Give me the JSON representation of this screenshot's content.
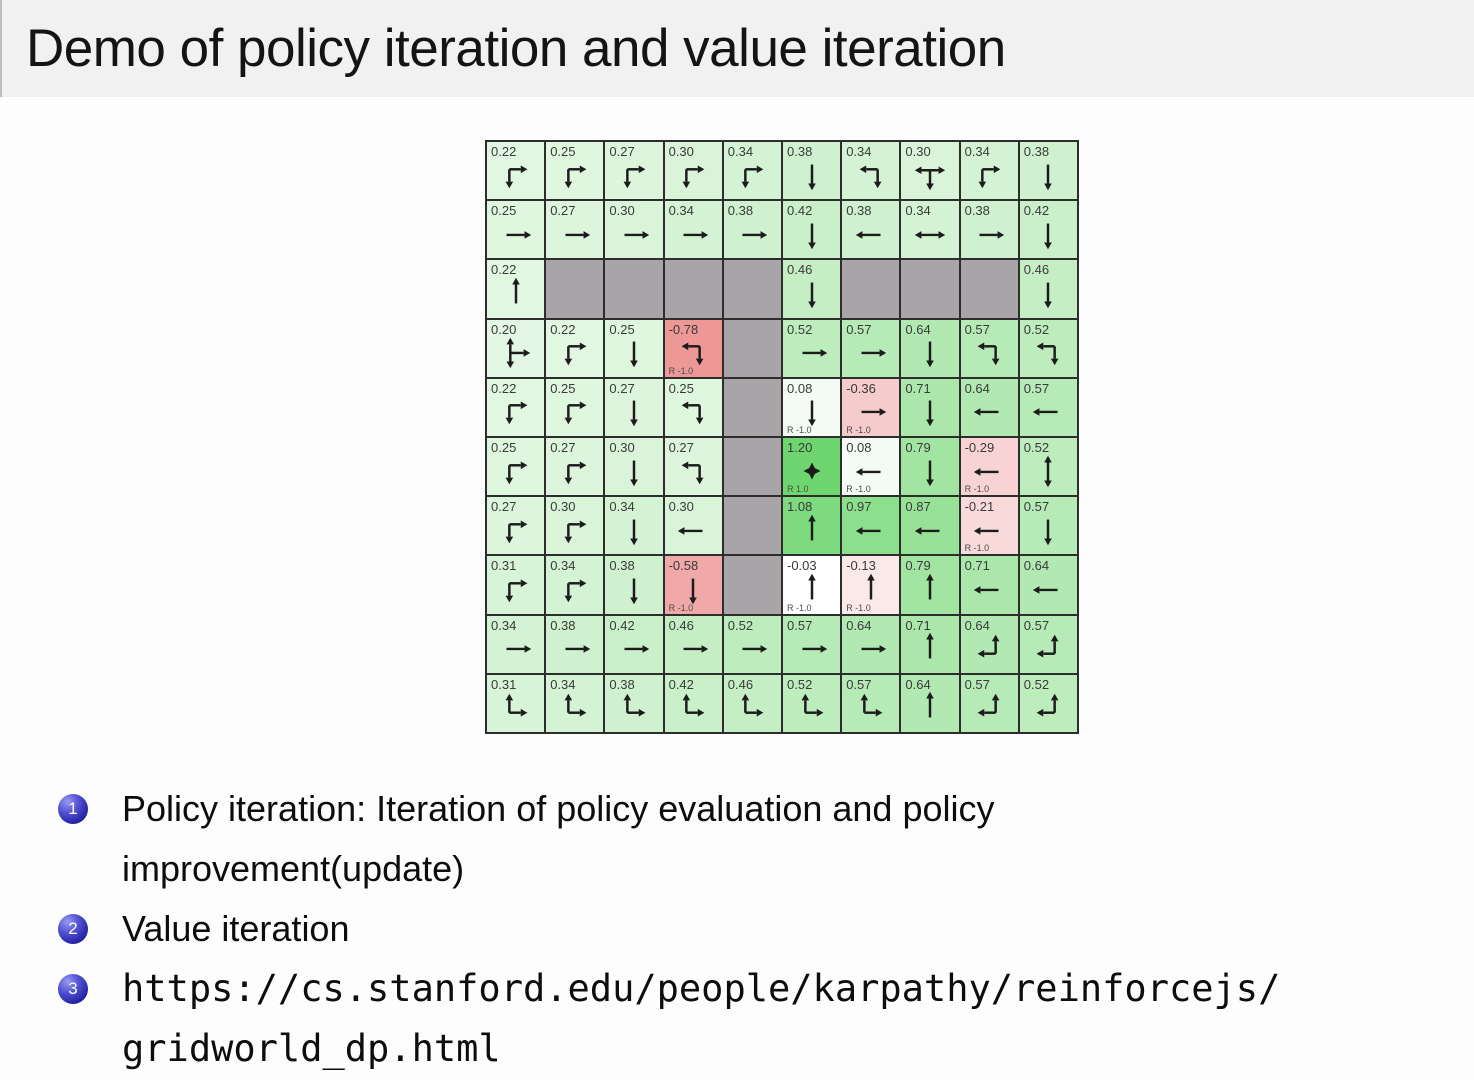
{
  "slide": {
    "title": "Demo of policy iteration and value iteration",
    "bullets": [
      {
        "num": "1",
        "lines": [
          "Policy iteration: Iteration of policy evaluation and policy",
          "improvement(update)"
        ]
      },
      {
        "num": "2",
        "lines": [
          "Value iteration"
        ]
      },
      {
        "num": "3",
        "lines": [
          "https://cs.stanford.edu/people/karpathy/reinforcejs/",
          "gridworld_dp.html"
        ]
      }
    ],
    "colors": {
      "title_bar_bg": "#f1f1f1",
      "body_bg": "#fdfdfd",
      "badge_blue": "#2424a6",
      "text": "#0d0d0d"
    }
  },
  "gridworld": {
    "rows": 10,
    "cols": 10,
    "line_color": "#2d2d2d",
    "wall_color": "#a8a4a8",
    "arrow_color": "#1c1c1c",
    "arrow_legend": {
      "r": "right",
      "l": "left",
      "u": "up",
      "d": "down",
      "lr": "left-right",
      "ud": "up-down",
      "dr": "down-right",
      "ld": "left-down",
      "ur": "up-right",
      "ul": "up-left",
      "lrd": "left-right-down",
      "urd": "up-right-down",
      "goal": "goal-diamond"
    },
    "cell_colors": {
      "0.20": "#e4f7e4",
      "0.22": "#e2f7e2",
      "0.25": "#dff6df",
      "0.27": "#ddf5dd",
      "0.30": "#d9f4d9",
      "0.31": "#d8f4d8",
      "0.34": "#d4f3d4",
      "0.38": "#cff1cf",
      "0.42": "#caf0ca",
      "0.46": "#c5eec5",
      "0.52": "#bdecbd",
      "0.57": "#b6eab6",
      "0.64": "#b2e9b2",
      "0.71": "#abe7ab",
      "0.79": "#a2e5a2",
      "0.87": "#98e298",
      "0.97": "#8cdf8c",
      "1.08": "#7eda7e",
      "1.20": "#6fd66f",
      "0.08": "#f4fbf4",
      "-0.03": "#fdfefd",
      "-0.13": "#fbe9e9",
      "-0.21": "#f8dada",
      "-0.29": "#f7d3d3",
      "-0.36": "#f5cbcb",
      "-0.58": "#f1a8a8",
      "-0.78": "#ee9797"
    },
    "cells": [
      [
        {
          "v": "0.22",
          "a": "dr"
        },
        {
          "v": "0.25",
          "a": "dr"
        },
        {
          "v": "0.27",
          "a": "dr"
        },
        {
          "v": "0.30",
          "a": "dr"
        },
        {
          "v": "0.34",
          "a": "dr"
        },
        {
          "v": "0.38",
          "a": "d"
        },
        {
          "v": "0.34",
          "a": "ld"
        },
        {
          "v": "0.30",
          "a": "lrd"
        },
        {
          "v": "0.34",
          "a": "dr"
        },
        {
          "v": "0.38",
          "a": "d"
        }
      ],
      [
        {
          "v": "0.25",
          "a": "r"
        },
        {
          "v": "0.27",
          "a": "r"
        },
        {
          "v": "0.30",
          "a": "r"
        },
        {
          "v": "0.34",
          "a": "r"
        },
        {
          "v": "0.38",
          "a": "r"
        },
        {
          "v": "0.42",
          "a": "d"
        },
        {
          "v": "0.38",
          "a": "l"
        },
        {
          "v": "0.34",
          "a": "lr"
        },
        {
          "v": "0.38",
          "a": "r"
        },
        {
          "v": "0.42",
          "a": "d"
        }
      ],
      [
        {
          "v": "0.22",
          "a": "u"
        },
        {
          "wall": true
        },
        {
          "wall": true
        },
        {
          "wall": true
        },
        {
          "wall": true
        },
        {
          "v": "0.46",
          "a": "d"
        },
        {
          "wall": true
        },
        {
          "wall": true
        },
        {
          "wall": true
        },
        {
          "v": "0.46",
          "a": "d"
        }
      ],
      [
        {
          "v": "0.20",
          "a": "urd"
        },
        {
          "v": "0.22",
          "a": "dr"
        },
        {
          "v": "0.25",
          "a": "d"
        },
        {
          "v": "-0.78",
          "a": "ld",
          "r": "R -1.0"
        },
        {
          "wall": true
        },
        {
          "v": "0.52",
          "a": "r"
        },
        {
          "v": "0.57",
          "a": "r"
        },
        {
          "v": "0.64",
          "a": "d"
        },
        {
          "v": "0.57",
          "a": "ld"
        },
        {
          "v": "0.52",
          "a": "ld"
        }
      ],
      [
        {
          "v": "0.22",
          "a": "dr"
        },
        {
          "v": "0.25",
          "a": "dr"
        },
        {
          "v": "0.27",
          "a": "d"
        },
        {
          "v": "0.25",
          "a": "ld"
        },
        {
          "wall": true
        },
        {
          "v": "0.08",
          "a": "d",
          "r": "R -1.0"
        },
        {
          "v": "-0.36",
          "a": "r",
          "r": "R -1.0"
        },
        {
          "v": "0.71",
          "a": "d"
        },
        {
          "v": "0.64",
          "a": "l"
        },
        {
          "v": "0.57",
          "a": "l"
        }
      ],
      [
        {
          "v": "0.25",
          "a": "dr"
        },
        {
          "v": "0.27",
          "a": "dr"
        },
        {
          "v": "0.30",
          "a": "d"
        },
        {
          "v": "0.27",
          "a": "ld"
        },
        {
          "wall": true
        },
        {
          "v": "1.20",
          "a": "goal",
          "r": "R 1.0"
        },
        {
          "v": "0.08",
          "a": "l",
          "r": "R -1.0"
        },
        {
          "v": "0.79",
          "a": "d"
        },
        {
          "v": "-0.29",
          "a": "l",
          "r": "R -1.0"
        },
        {
          "v": "0.52",
          "a": "ud"
        }
      ],
      [
        {
          "v": "0.27",
          "a": "dr"
        },
        {
          "v": "0.30",
          "a": "dr"
        },
        {
          "v": "0.34",
          "a": "d"
        },
        {
          "v": "0.30",
          "a": "l"
        },
        {
          "wall": true
        },
        {
          "v": "1.08",
          "a": "u"
        },
        {
          "v": "0.97",
          "a": "l"
        },
        {
          "v": "0.87",
          "a": "l"
        },
        {
          "v": "-0.21",
          "a": "l",
          "r": "R -1.0"
        },
        {
          "v": "0.57",
          "a": "d"
        }
      ],
      [
        {
          "v": "0.31",
          "a": "dr"
        },
        {
          "v": "0.34",
          "a": "dr"
        },
        {
          "v": "0.38",
          "a": "d"
        },
        {
          "v": "-0.58",
          "a": "d",
          "r": "R -1.0"
        },
        {
          "wall": true
        },
        {
          "v": "-0.03",
          "a": "u",
          "r": "R -1.0"
        },
        {
          "v": "-0.13",
          "a": "u",
          "r": "R -1.0"
        },
        {
          "v": "0.79",
          "a": "u"
        },
        {
          "v": "0.71",
          "a": "l"
        },
        {
          "v": "0.64",
          "a": "l"
        }
      ],
      [
        {
          "v": "0.34",
          "a": "r"
        },
        {
          "v": "0.38",
          "a": "r"
        },
        {
          "v": "0.42",
          "a": "r"
        },
        {
          "v": "0.46",
          "a": "r"
        },
        {
          "v": "0.52",
          "a": "r"
        },
        {
          "v": "0.57",
          "a": "r"
        },
        {
          "v": "0.64",
          "a": "r"
        },
        {
          "v": "0.71",
          "a": "u"
        },
        {
          "v": "0.64",
          "a": "ul"
        },
        {
          "v": "0.57",
          "a": "ul"
        }
      ],
      [
        {
          "v": "0.31",
          "a": "ur"
        },
        {
          "v": "0.34",
          "a": "ur"
        },
        {
          "v": "0.38",
          "a": "ur"
        },
        {
          "v": "0.42",
          "a": "ur"
        },
        {
          "v": "0.46",
          "a": "ur"
        },
        {
          "v": "0.52",
          "a": "ur"
        },
        {
          "v": "0.57",
          "a": "ur"
        },
        {
          "v": "0.64",
          "a": "u"
        },
        {
          "v": "0.57",
          "a": "ul"
        },
        {
          "v": "0.52",
          "a": "ul"
        }
      ]
    ]
  }
}
